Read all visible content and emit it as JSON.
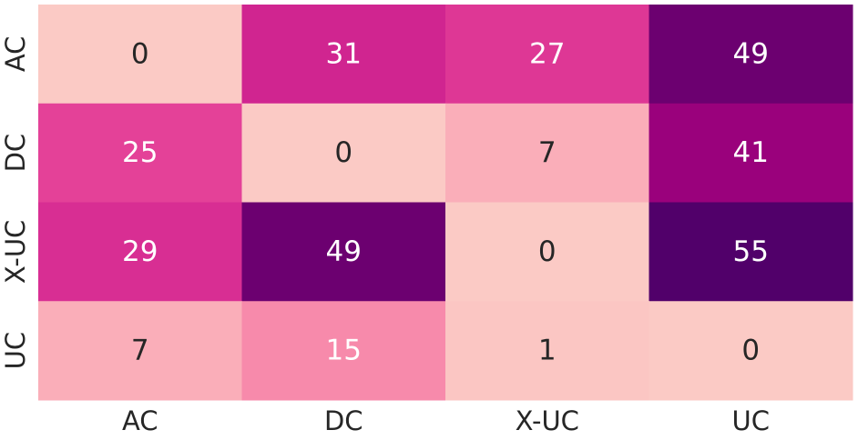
{
  "chart_data": {
    "type": "heatmap",
    "title": "",
    "xlabel": "",
    "ylabel": "",
    "x_categories": [
      "AC",
      "DC",
      "X-UC",
      "UC"
    ],
    "y_categories": [
      "AC",
      "DC",
      "X-UC",
      "UC"
    ],
    "values": [
      [
        0,
        31,
        27,
        49
      ],
      [
        25,
        0,
        7,
        41
      ],
      [
        29,
        49,
        0,
        55
      ],
      [
        7,
        15,
        1,
        0
      ]
    ],
    "colorbar": false,
    "colormap": "RdPu (pink to purple)",
    "grid": false
  }
}
